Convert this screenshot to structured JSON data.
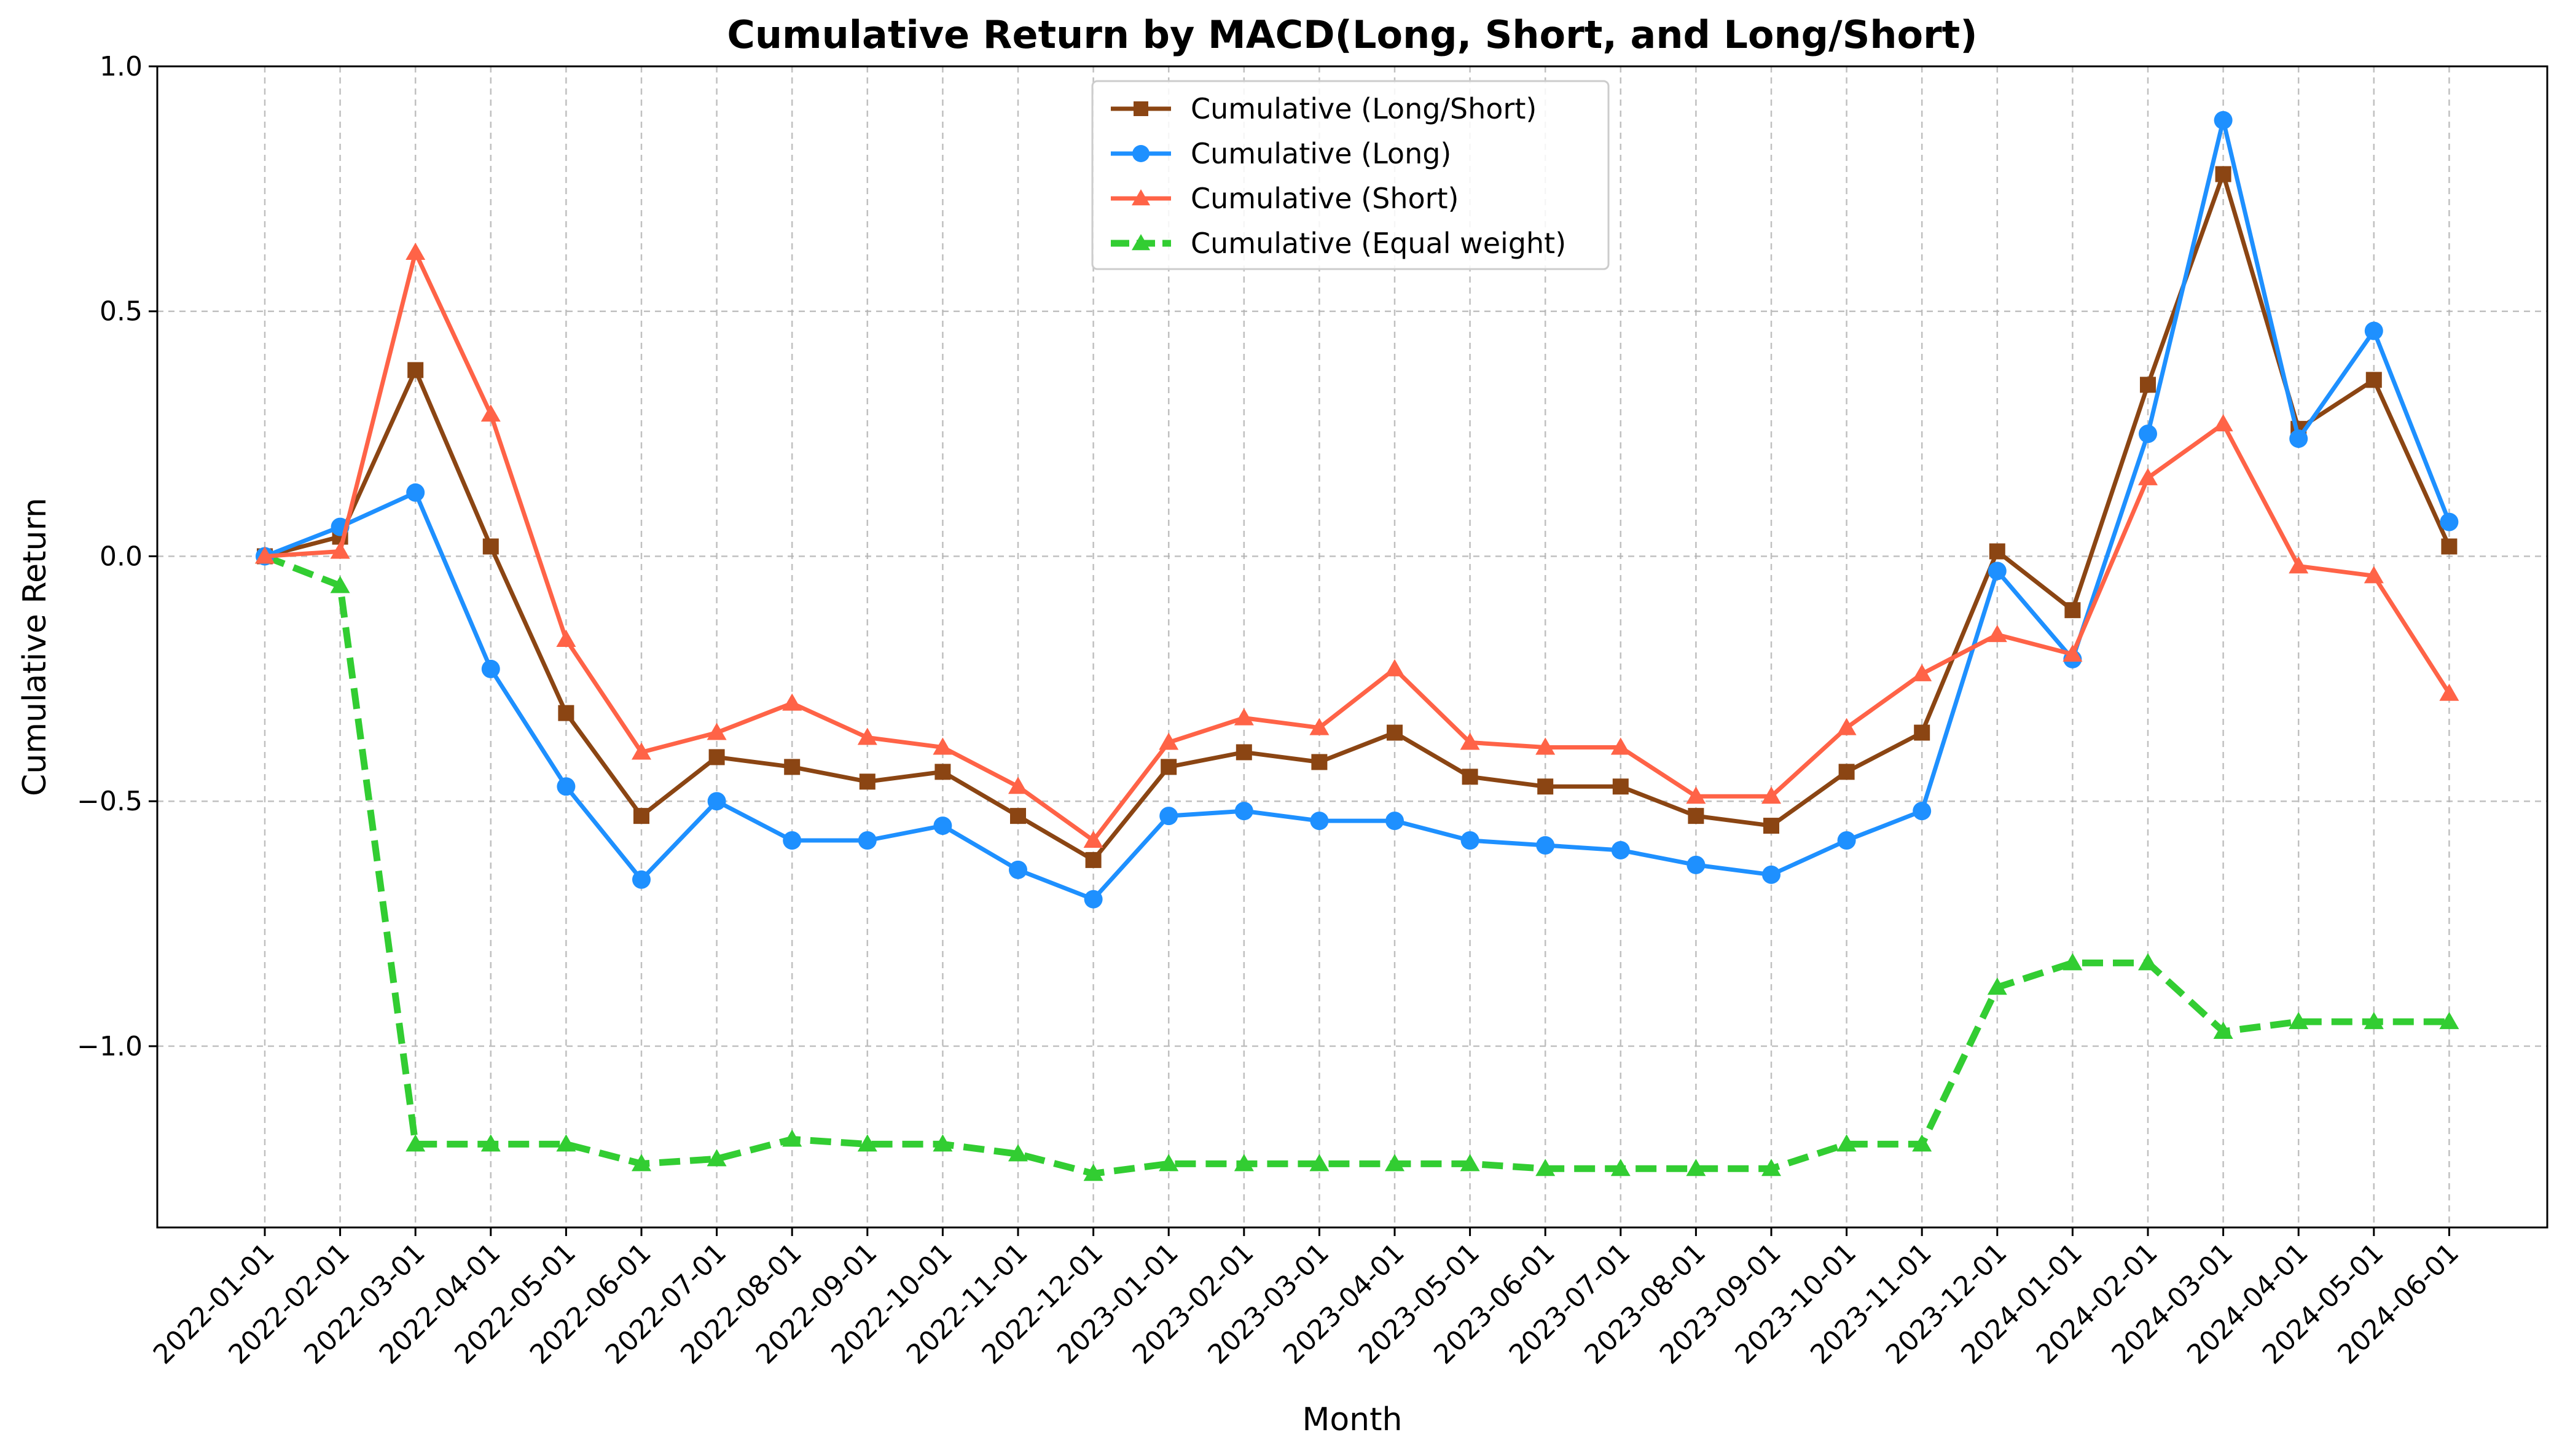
{
  "chart_data": {
    "type": "line",
    "title": "Cumulative Return by MACD(Long, Short, and Long/Short)",
    "xlabel": "Month",
    "ylabel": "Cumulative Return",
    "ylim": [
      -1.37,
      1.0
    ],
    "yticks": [
      1.0,
      0.5,
      0.0,
      -0.5,
      -1.0
    ],
    "ytick_labels": [
      "1.0",
      "0.5",
      "0.0",
      "−0.5",
      "−1.0"
    ],
    "grid": true,
    "legend_position": "top-center",
    "categories": [
      "2022-01-01",
      "2022-02-01",
      "2022-03-01",
      "2022-04-01",
      "2022-05-01",
      "2022-06-01",
      "2022-07-01",
      "2022-08-01",
      "2022-09-01",
      "2022-10-01",
      "2022-11-01",
      "2022-12-01",
      "2023-01-01",
      "2023-02-01",
      "2023-03-01",
      "2023-04-01",
      "2023-05-01",
      "2023-06-01",
      "2023-07-01",
      "2023-08-01",
      "2023-09-01",
      "2023-10-01",
      "2023-11-01",
      "2023-12-01",
      "2024-01-01",
      "2024-02-01",
      "2024-03-01",
      "2024-04-01",
      "2024-05-01",
      "2024-06-01"
    ],
    "series": [
      {
        "name": "Cumulative (Long/Short)",
        "color": "#8B4513",
        "marker": "square",
        "dashed": false,
        "values": [
          0.0,
          0.04,
          0.38,
          0.02,
          -0.32,
          -0.53,
          -0.41,
          -0.43,
          -0.46,
          -0.44,
          -0.53,
          -0.62,
          -0.43,
          -0.4,
          -0.42,
          -0.36,
          -0.45,
          -0.47,
          -0.47,
          -0.53,
          -0.55,
          -0.44,
          -0.36,
          0.01,
          -0.11,
          0.35,
          0.78,
          0.26,
          0.36,
          0.02
        ]
      },
      {
        "name": "Cumulative (Long)",
        "color": "#1E90FF",
        "marker": "circle",
        "dashed": false,
        "values": [
          0.0,
          0.06,
          0.13,
          -0.23,
          -0.47,
          -0.66,
          -0.5,
          -0.58,
          -0.58,
          -0.55,
          -0.64,
          -0.7,
          -0.53,
          -0.52,
          -0.54,
          -0.54,
          -0.58,
          -0.59,
          -0.6,
          -0.63,
          -0.65,
          -0.58,
          -0.52,
          -0.03,
          -0.21,
          0.25,
          0.89,
          0.24,
          0.46,
          0.07
        ]
      },
      {
        "name": "Cumulative (Short)",
        "color": "#FF6347",
        "marker": "triangle",
        "dashed": false,
        "values": [
          0.0,
          0.01,
          0.62,
          0.29,
          -0.17,
          -0.4,
          -0.36,
          -0.3,
          -0.37,
          -0.39,
          -0.47,
          -0.58,
          -0.38,
          -0.33,
          -0.35,
          -0.23,
          -0.38,
          -0.39,
          -0.39,
          -0.49,
          -0.49,
          -0.35,
          -0.24,
          -0.16,
          -0.2,
          0.16,
          0.27,
          -0.02,
          -0.04,
          -0.28
        ]
      },
      {
        "name": "Cumulative (Equal weight)",
        "color": "#32CD32",
        "marker": "triangle",
        "dashed": true,
        "values": [
          0.0,
          -0.06,
          -1.2,
          -1.2,
          -1.2,
          -1.24,
          -1.23,
          -1.19,
          -1.2,
          -1.2,
          -1.22,
          -1.26,
          -1.24,
          -1.24,
          -1.24,
          -1.24,
          -1.24,
          -1.25,
          -1.25,
          -1.25,
          -1.25,
          -1.2,
          -1.2,
          -0.88,
          -0.83,
          -0.83,
          -0.97,
          -0.95,
          -0.95,
          -0.95
        ]
      }
    ]
  }
}
